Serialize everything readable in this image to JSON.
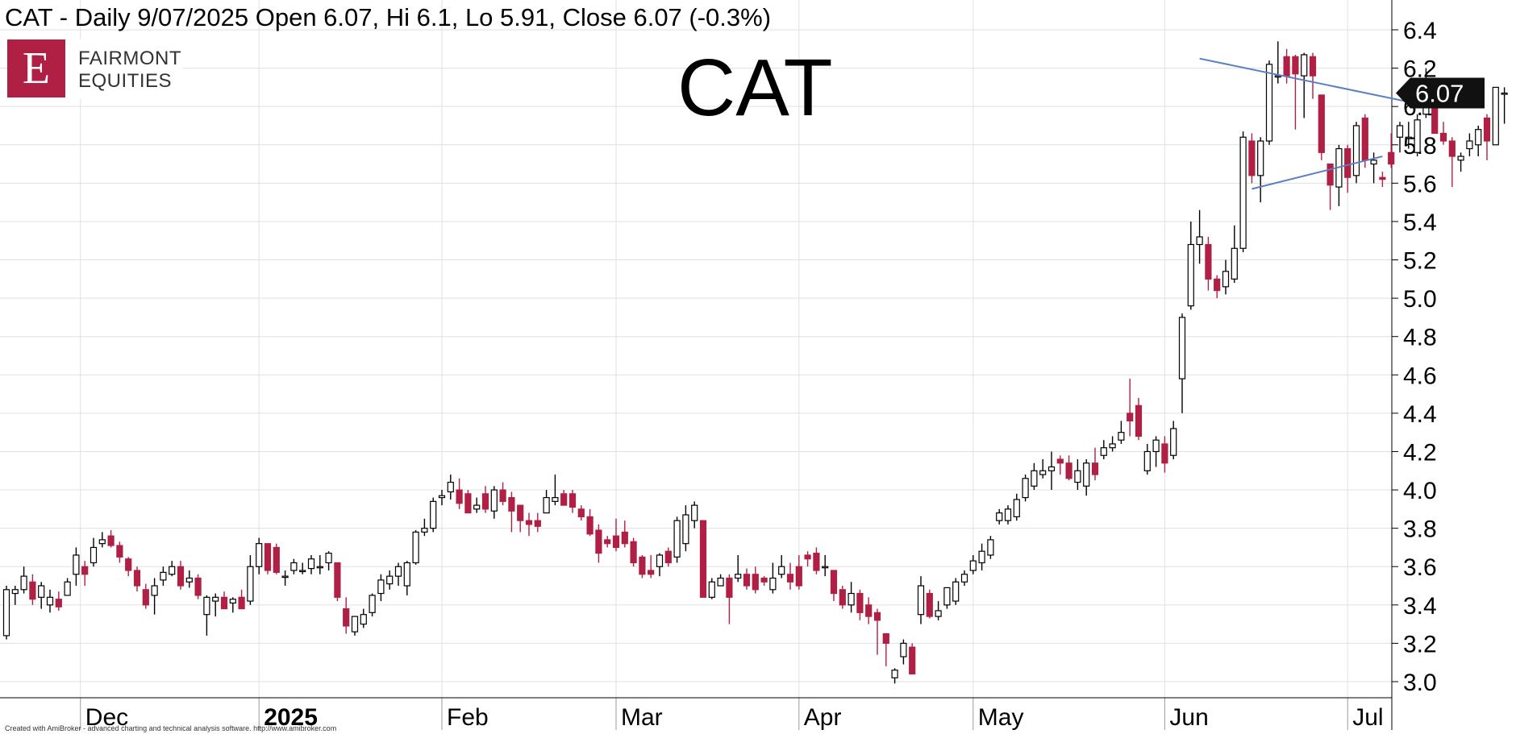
{
  "header": {
    "title": "CAT - Daily 9/07/2025 Open 6.07, Hi 6.1, Lo 5.91, Close 6.07 (-0.3%)",
    "watermark": "CAT",
    "footer": "Created with AmiBroker - advanced charting and technical analysis software. http://www.amibroker.com"
  },
  "logo": {
    "letter": "E",
    "line1": "FAIRMONT",
    "line2": "EQUITIES",
    "color": "#b01f44"
  },
  "colors": {
    "up_fill": "#ffffff",
    "down_fill": "#b01f44",
    "outline": "#000000",
    "trendline": "#5b7fbf",
    "grid": "#e0e0e0"
  },
  "chart_data": {
    "type": "candlestick",
    "y_axis": {
      "min": 3.0,
      "max": 6.4,
      "ticks": [
        "3.0",
        "3.2",
        "3.4",
        "3.6",
        "3.8",
        "4.0",
        "4.2",
        "4.4",
        "4.6",
        "4.8",
        "5.0",
        "5.2",
        "5.4",
        "5.6",
        "5.8",
        "6.0",
        "6.2",
        "6.4"
      ]
    },
    "x_axis": {
      "labels": [
        {
          "label": "Dec",
          "index": 8.5
        },
        {
          "label": "2025",
          "index": 29,
          "bold": true
        },
        {
          "label": "Feb",
          "index": 50
        },
        {
          "label": "Mar",
          "index": 70
        },
        {
          "label": "Apr",
          "index": 91
        },
        {
          "label": "May",
          "index": 111
        },
        {
          "label": "Jun",
          "index": 133
        },
        {
          "label": "Jul",
          "index": 154
        }
      ]
    },
    "last_price": "6.07",
    "candles": [
      [
        3.24,
        3.48,
        3.22,
        3.5
      ],
      [
        3.46,
        3.48,
        3.4,
        3.5
      ],
      [
        3.48,
        3.55,
        3.46,
        3.6
      ],
      [
        3.52,
        3.43,
        3.4,
        3.56
      ],
      [
        3.44,
        3.5,
        3.38,
        3.52
      ],
      [
        3.4,
        3.44,
        3.36,
        3.48
      ],
      [
        3.43,
        3.39,
        3.37,
        3.47
      ],
      [
        3.45,
        3.52,
        3.45,
        3.54
      ],
      [
        3.56,
        3.66,
        3.5,
        3.7
      ],
      [
        3.6,
        3.56,
        3.5,
        3.63
      ],
      [
        3.62,
        3.7,
        3.6,
        3.75
      ],
      [
        3.72,
        3.74,
        3.7,
        3.78
      ],
      [
        3.76,
        3.71,
        3.7,
        3.79
      ],
      [
        3.71,
        3.65,
        3.62,
        3.73
      ],
      [
        3.64,
        3.58,
        3.55,
        3.65
      ],
      [
        3.58,
        3.5,
        3.47,
        3.6
      ],
      [
        3.48,
        3.4,
        3.38,
        3.51
      ],
      [
        3.45,
        3.5,
        3.35,
        3.54
      ],
      [
        3.53,
        3.57,
        3.5,
        3.6
      ],
      [
        3.56,
        3.6,
        3.55,
        3.63
      ],
      [
        3.6,
        3.5,
        3.48,
        3.63
      ],
      [
        3.52,
        3.54,
        3.49,
        3.58
      ],
      [
        3.54,
        3.45,
        3.43,
        3.56
      ],
      [
        3.35,
        3.44,
        3.24,
        3.45
      ],
      [
        3.42,
        3.44,
        3.34,
        3.46
      ],
      [
        3.44,
        3.38,
        3.38,
        3.47
      ],
      [
        3.41,
        3.43,
        3.36,
        3.44
      ],
      [
        3.44,
        3.38,
        3.38,
        3.48
      ],
      [
        3.42,
        3.6,
        3.4,
        3.66
      ],
      [
        3.6,
        3.72,
        3.56,
        3.75
      ],
      [
        3.72,
        3.58,
        3.56,
        3.72
      ],
      [
        3.7,
        3.57,
        3.56,
        3.72
      ],
      [
        3.55,
        3.55,
        3.5,
        3.58
      ],
      [
        3.58,
        3.62,
        3.56,
        3.64
      ],
      [
        3.58,
        3.58,
        3.56,
        3.62
      ],
      [
        3.59,
        3.64,
        3.56,
        3.66
      ],
      [
        3.6,
        3.6,
        3.56,
        3.66
      ],
      [
        3.62,
        3.67,
        3.58,
        3.68
      ],
      [
        3.62,
        3.44,
        3.42,
        3.62
      ],
      [
        3.38,
        3.29,
        3.25,
        3.44
      ],
      [
        3.26,
        3.34,
        3.24,
        3.34
      ],
      [
        3.3,
        3.35,
        3.28,
        3.38
      ],
      [
        3.36,
        3.45,
        3.34,
        3.46
      ],
      [
        3.46,
        3.53,
        3.42,
        3.56
      ],
      [
        3.51,
        3.55,
        3.48,
        3.58
      ],
      [
        3.55,
        3.6,
        3.5,
        3.62
      ],
      [
        3.5,
        3.62,
        3.45,
        3.63
      ],
      [
        3.62,
        3.78,
        3.61,
        3.79
      ],
      [
        3.78,
        3.8,
        3.76,
        3.85
      ],
      [
        3.8,
        3.94,
        3.78,
        3.96
      ],
      [
        3.96,
        3.97,
        3.92,
        4.0
      ],
      [
        3.99,
        4.04,
        3.95,
        4.08
      ],
      [
        4.0,
        3.93,
        3.9,
        4.06
      ],
      [
        3.98,
        3.88,
        3.88,
        4.0
      ],
      [
        3.9,
        3.92,
        3.88,
        3.96
      ],
      [
        3.98,
        3.9,
        3.88,
        4.02
      ],
      [
        3.89,
        4.0,
        3.85,
        4.02
      ],
      [
        4.0,
        3.94,
        3.92,
        4.04
      ],
      [
        3.96,
        3.89,
        3.78,
        3.99
      ],
      [
        3.92,
        3.84,
        3.78,
        3.92
      ],
      [
        3.84,
        3.82,
        3.76,
        3.88
      ],
      [
        3.84,
        3.81,
        3.78,
        3.88
      ],
      [
        3.88,
        3.96,
        3.88,
        4.0
      ],
      [
        3.94,
        3.96,
        3.92,
        4.08
      ],
      [
        3.98,
        3.92,
        3.92,
        4.0
      ],
      [
        3.98,
        3.91,
        3.88,
        4.0
      ],
      [
        3.9,
        3.86,
        3.84,
        3.92
      ],
      [
        3.86,
        3.77,
        3.76,
        3.9
      ],
      [
        3.79,
        3.67,
        3.62,
        3.82
      ],
      [
        3.74,
        3.72,
        3.7,
        3.76
      ],
      [
        3.76,
        3.7,
        3.68,
        3.85
      ],
      [
        3.78,
        3.72,
        3.7,
        3.84
      ],
      [
        3.73,
        3.62,
        3.6,
        3.75
      ],
      [
        3.65,
        3.56,
        3.54,
        3.66
      ],
      [
        3.58,
        3.56,
        3.54,
        3.66
      ],
      [
        3.6,
        3.66,
        3.55,
        3.67
      ],
      [
        3.68,
        3.62,
        3.6,
        3.7
      ],
      [
        3.65,
        3.84,
        3.62,
        3.86
      ],
      [
        3.72,
        3.87,
        3.68,
        3.92
      ],
      [
        3.84,
        3.92,
        3.8,
        3.94
      ],
      [
        3.84,
        3.44,
        3.44,
        3.84
      ],
      [
        3.44,
        3.52,
        3.43,
        3.54
      ],
      [
        3.5,
        3.54,
        3.5,
        3.56
      ],
      [
        3.54,
        3.44,
        3.3,
        3.56
      ],
      [
        3.54,
        3.56,
        3.52,
        3.66
      ],
      [
        3.56,
        3.5,
        3.48,
        3.59
      ],
      [
        3.56,
        3.48,
        3.46,
        3.6
      ],
      [
        3.54,
        3.52,
        3.5,
        3.55
      ],
      [
        3.48,
        3.54,
        3.46,
        3.62
      ],
      [
        3.56,
        3.6,
        3.54,
        3.66
      ],
      [
        3.56,
        3.52,
        3.48,
        3.62
      ],
      [
        3.6,
        3.5,
        3.48,
        3.66
      ],
      [
        3.66,
        3.64,
        3.6,
        3.68
      ],
      [
        3.67,
        3.58,
        3.56,
        3.7
      ],
      [
        3.6,
        3.6,
        3.55,
        3.66
      ],
      [
        3.58,
        3.46,
        3.42,
        3.58
      ],
      [
        3.48,
        3.4,
        3.38,
        3.5
      ],
      [
        3.4,
        3.46,
        3.36,
        3.52
      ],
      [
        3.46,
        3.36,
        3.32,
        3.48
      ],
      [
        3.4,
        3.34,
        3.3,
        3.44
      ],
      [
        3.36,
        3.32,
        3.14,
        3.38
      ],
      [
        3.25,
        3.2,
        3.08,
        3.25
      ],
      [
        3.02,
        3.06,
        2.99,
        3.07
      ],
      [
        3.13,
        3.2,
        3.09,
        3.22
      ],
      [
        3.18,
        3.04,
        3.04,
        3.2
      ],
      [
        3.35,
        3.5,
        3.3,
        3.55
      ],
      [
        3.46,
        3.34,
        3.33,
        3.48
      ],
      [
        3.34,
        3.37,
        3.32,
        3.42
      ],
      [
        3.4,
        3.49,
        3.38,
        3.49
      ],
      [
        3.42,
        3.52,
        3.4,
        3.54
      ],
      [
        3.52,
        3.56,
        3.5,
        3.58
      ],
      [
        3.58,
        3.63,
        3.56,
        3.66
      ],
      [
        3.62,
        3.68,
        3.58,
        3.72
      ],
      [
        3.66,
        3.74,
        3.64,
        3.76
      ],
      [
        3.84,
        3.88,
        3.82,
        3.9
      ],
      [
        3.84,
        3.9,
        3.82,
        3.92
      ],
      [
        3.86,
        3.95,
        3.84,
        3.98
      ],
      [
        3.96,
        4.06,
        3.94,
        4.08
      ],
      [
        4.02,
        4.1,
        4.0,
        4.14
      ],
      [
        4.08,
        4.1,
        4.06,
        4.16
      ],
      [
        4.1,
        4.12,
        4.0,
        4.2
      ],
      [
        4.16,
        4.14,
        4.08,
        4.18
      ],
      [
        4.14,
        4.06,
        4.05,
        4.18
      ],
      [
        4.04,
        4.1,
        4.0,
        4.16
      ],
      [
        4.02,
        4.14,
        3.97,
        4.16
      ],
      [
        4.14,
        4.08,
        4.05,
        4.22
      ],
      [
        4.18,
        4.22,
        4.16,
        4.26
      ],
      [
        4.22,
        4.24,
        4.2,
        4.28
      ],
      [
        4.26,
        4.3,
        4.24,
        4.36
      ],
      [
        4.4,
        4.36,
        4.28,
        4.58
      ],
      [
        4.44,
        4.28,
        4.26,
        4.48
      ],
      [
        4.1,
        4.2,
        4.08,
        4.24
      ],
      [
        4.2,
        4.26,
        4.12,
        4.28
      ],
      [
        4.24,
        4.14,
        4.09,
        4.28
      ],
      [
        4.18,
        4.32,
        4.16,
        4.36
      ],
      [
        4.58,
        4.9,
        4.4,
        4.92
      ],
      [
        4.96,
        5.28,
        4.94,
        5.4
      ],
      [
        5.28,
        5.32,
        5.18,
        5.46
      ],
      [
        5.28,
        5.1,
        5.04,
        5.32
      ],
      [
        5.1,
        5.04,
        5.0,
        5.12
      ],
      [
        5.06,
        5.14,
        5.02,
        5.2
      ],
      [
        5.1,
        5.26,
        5.08,
        5.38
      ],
      [
        5.26,
        5.84,
        5.24,
        5.87
      ],
      [
        5.82,
        5.64,
        5.6,
        5.86
      ],
      [
        5.64,
        5.82,
        5.5,
        5.84
      ],
      [
        5.82,
        6.22,
        5.8,
        6.24
      ],
      [
        6.16,
        6.16,
        6.12,
        6.34
      ],
      [
        6.26,
        6.16,
        6.12,
        6.3
      ],
      [
        6.26,
        6.17,
        5.88,
        6.27
      ],
      [
        6.16,
        6.27,
        5.94,
        6.28
      ],
      [
        6.26,
        6.16,
        6.04,
        6.28
      ],
      [
        6.06,
        5.76,
        5.72,
        6.06
      ],
      [
        5.7,
        5.59,
        5.46,
        5.7
      ],
      [
        5.58,
        5.78,
        5.48,
        5.8
      ],
      [
        5.78,
        5.63,
        5.55,
        5.8
      ],
      [
        5.64,
        5.9,
        5.6,
        5.92
      ],
      [
        5.94,
        5.72,
        5.68,
        5.96
      ],
      [
        5.7,
        5.72,
        5.6,
        5.76
      ],
      [
        5.63,
        5.62,
        5.58,
        5.66
      ],
      [
        5.76,
        5.7,
        5.68,
        5.86
      ],
      [
        5.84,
        5.9,
        5.76,
        5.92
      ],
      [
        5.84,
        5.84,
        5.78,
        5.92
      ],
      [
        5.76,
        5.93,
        5.74,
        5.96
      ],
      [
        5.96,
        6.11,
        5.94,
        6.2
      ],
      [
        6.0,
        5.86,
        5.86,
        6.02
      ],
      [
        5.86,
        5.82,
        5.8,
        5.92
      ],
      [
        5.82,
        5.74,
        5.58,
        5.84
      ],
      [
        5.72,
        5.74,
        5.66,
        5.76
      ],
      [
        5.78,
        5.82,
        5.74,
        5.86
      ],
      [
        5.8,
        5.88,
        5.74,
        5.9
      ],
      [
        5.94,
        5.82,
        5.72,
        5.96
      ],
      [
        5.8,
        6.1,
        5.8,
        6.1
      ],
      [
        6.07,
        6.07,
        5.91,
        6.1
      ]
    ],
    "trendlines": [
      {
        "name": "upper",
        "from": {
          "index": 137,
          "value": 6.25
        },
        "to": {
          "index": 162.5,
          "value": 6.01
        }
      },
      {
        "name": "lower",
        "from": {
          "index": 143,
          "value": 5.57
        },
        "to": {
          "index": 158,
          "value": 5.74
        }
      }
    ]
  }
}
